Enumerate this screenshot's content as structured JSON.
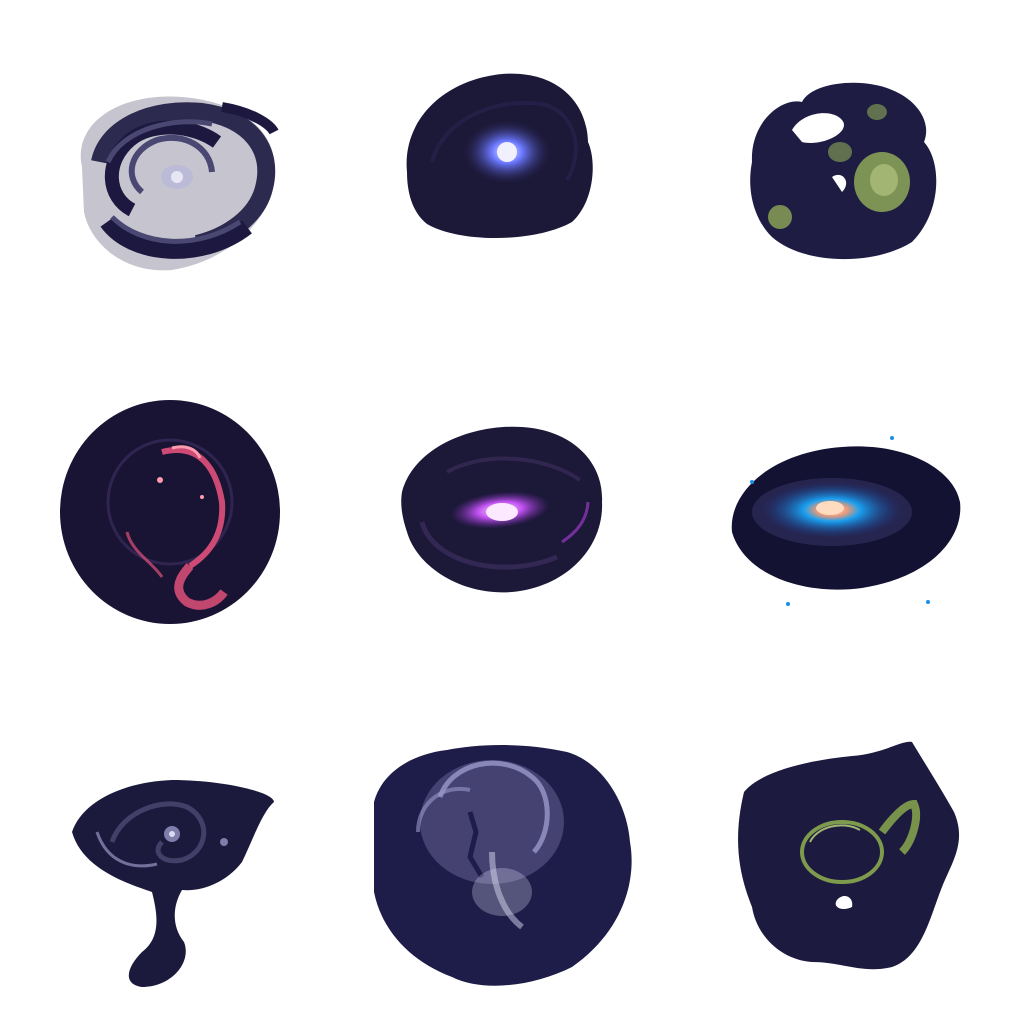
{
  "gallery": {
    "background": "#ffffff",
    "items": [
      {
        "subject": "spiral-galaxy-arms",
        "base": "#1c1840",
        "mid": "#4a4872",
        "glow": "#b8b6d8",
        "core": "#e8e6f4"
      },
      {
        "subject": "galaxy-blue-core",
        "base": "#1c1838",
        "mid": "#2a2656",
        "glow": "#3a4ad8",
        "core": "#f0f0ff"
      },
      {
        "subject": "nebula-green-clouds",
        "base": "#1e1c42",
        "mid": "#3c3a64",
        "glow": "#8ea858",
        "core": "#c8d890"
      },
      {
        "subject": "nebula-red-filaments",
        "base": "#1a1434",
        "mid": "#3a2c5e",
        "glow": "#e0507a",
        "core": "#ff9cb0"
      },
      {
        "subject": "galaxy-magenta-bar",
        "base": "#1c1838",
        "mid": "#3a2c5a",
        "glow": "#b040e0",
        "core": "#fce8ff"
      },
      {
        "subject": "galaxy-cyan-disk",
        "base": "#141232",
        "mid": "#2a2a58",
        "glow": "#1a8ee8",
        "core": "#ffdcc0"
      },
      {
        "subject": "interacting-galaxy-tail",
        "base": "#1c1a3c",
        "mid": "#4a4670",
        "glow": "#9896c4",
        "core": "#dcdaf0"
      },
      {
        "subject": "carina-nebula-cavity",
        "base": "#1e1c48",
        "mid": "#5a5888",
        "glow": "#9a98c8",
        "core": "#d8d6f0"
      },
      {
        "subject": "nebula-green-shell",
        "base": "#1c1a3e",
        "mid": "#3a386a",
        "glow": "#8aa84e",
        "core": "#c4dc80"
      }
    ]
  }
}
